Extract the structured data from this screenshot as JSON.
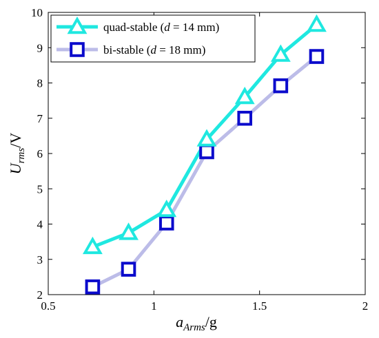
{
  "chart_data": {
    "type": "line",
    "x": [
      0.71,
      0.88,
      1.06,
      1.25,
      1.43,
      1.6,
      1.77
    ],
    "series": [
      {
        "name": "quad-stable (d = 14 mm)",
        "name_parts": [
          "quad-stable (",
          "d",
          " = 14 mm)"
        ],
        "marker": "triangle",
        "color": "#1fe8e0",
        "values": [
          3.35,
          3.75,
          4.4,
          6.4,
          7.6,
          8.8,
          9.65
        ]
      },
      {
        "name": "bi-stable (d = 18 mm)",
        "name_parts": [
          "bi-stable (",
          "d",
          " = 18 mm)"
        ],
        "marker": "square",
        "color": "#0b0bcc",
        "line_color": "#bcbce8",
        "values": [
          2.22,
          2.72,
          4.03,
          6.05,
          7.0,
          7.92,
          8.75
        ]
      }
    ],
    "xlim": [
      0.5,
      2
    ],
    "ylim": [
      2,
      10
    ],
    "xticks": [
      "0.5",
      "1",
      "1.5",
      "2"
    ],
    "yticks": [
      "2",
      "3",
      "4",
      "5",
      "6",
      "7",
      "8",
      "9",
      "10"
    ],
    "xlabel": {
      "main": "a",
      "sub": "Arms",
      "unit": "/g"
    },
    "ylabel": {
      "main": "U",
      "sub": "rms",
      "unit": "/V"
    },
    "legend_position": "top-left",
    "grid": false
  }
}
